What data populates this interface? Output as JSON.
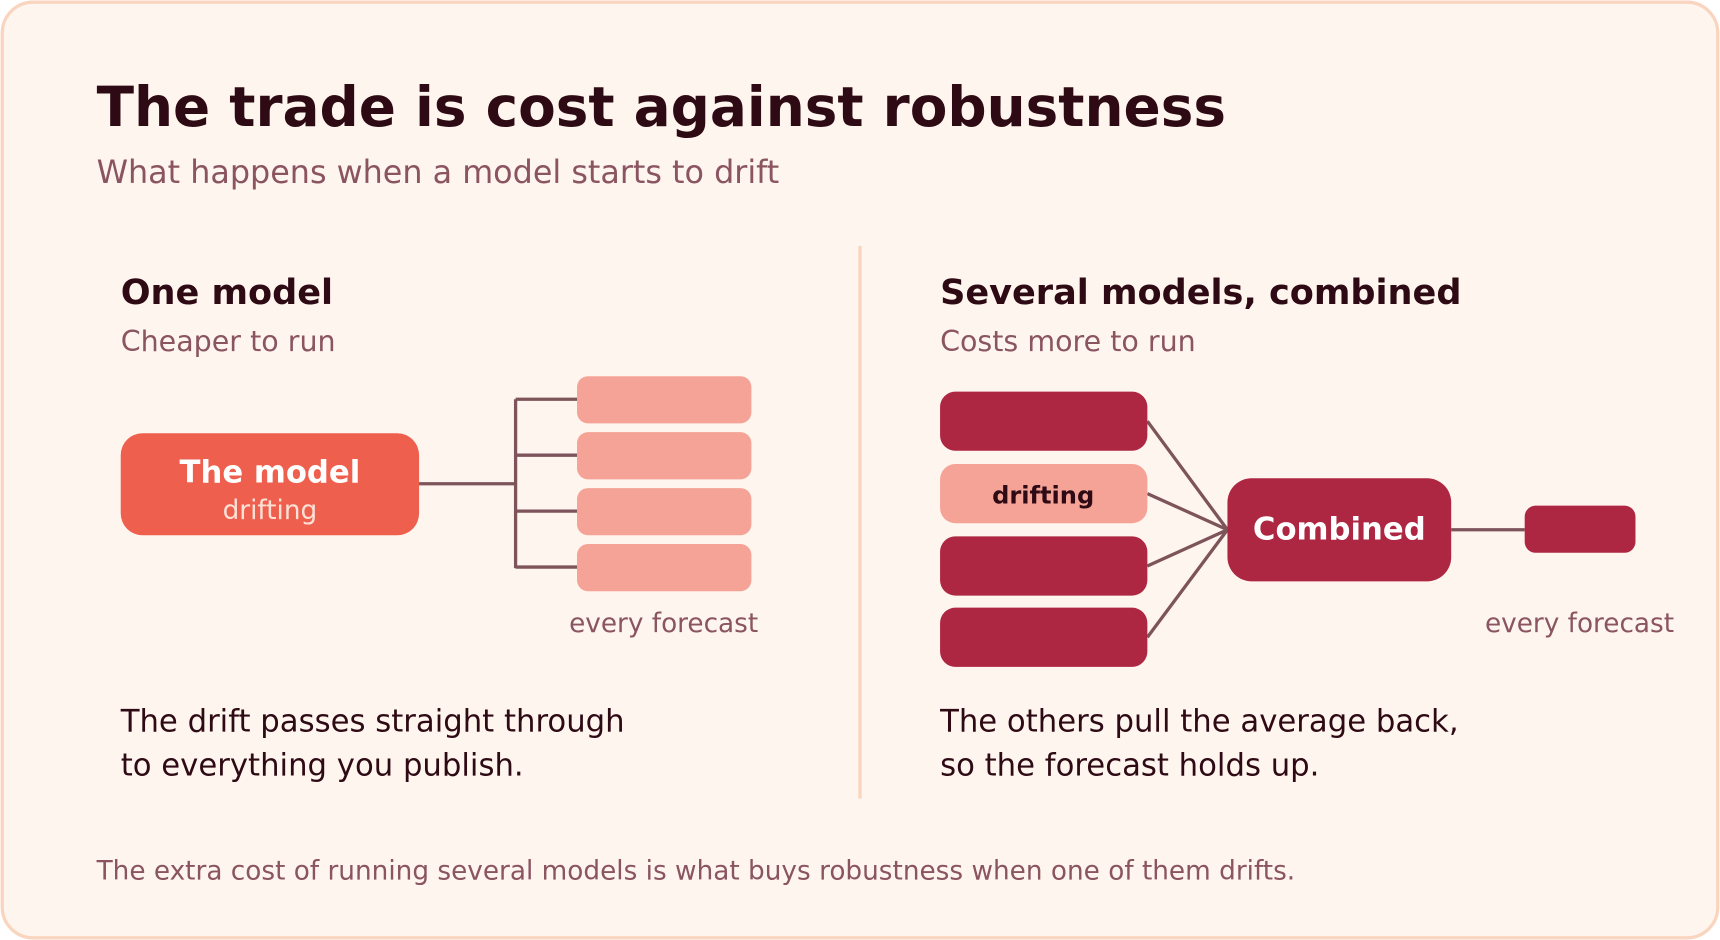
{
  "title": "The trade is cost against robustness",
  "subtitle": "What happens when a model starts to drift",
  "panels": [
    {
      "heading": "One model",
      "subheading": "Cheaper to run",
      "node": {
        "label": "The model",
        "sublabel": "drifting"
      },
      "outputs_label": "every forecast",
      "caption": [
        "The drift passes straight through",
        "to everything you publish."
      ]
    },
    {
      "heading": "Several models, combined",
      "subheading": "Costs more to run",
      "drifting_input": "drifting",
      "node": {
        "label": "Combined"
      },
      "outputs_label": "every forecast",
      "caption": [
        "The others pull the average back,",
        "so the forecast holds up."
      ]
    }
  ],
  "footer": "The extra cost of running several models is what buys robustness when one of them drifts."
}
